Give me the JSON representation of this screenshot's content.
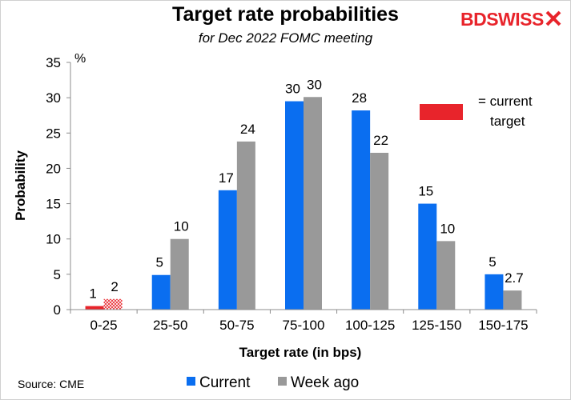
{
  "title": "Target rate probabilities",
  "subtitle": "for Dec 2022 FOMC meeting",
  "logo": {
    "text": "BDSWISS",
    "color": "#e8242b"
  },
  "source": "Source: CME",
  "unit_label": "%",
  "annotation": {
    "line1": "= current",
    "line2": "target",
    "color": "#e8242b"
  },
  "colors": {
    "current": "#0a6ef0",
    "week_ago": "#999999",
    "current_target": "#e8242b"
  },
  "chart_data": {
    "type": "bar",
    "title": "Target rate probabilities",
    "subtitle": "for Dec 2022 FOMC meeting",
    "xlabel": "Target rate (in bps)",
    "ylabel": "Probability",
    "ylim": [
      0,
      35
    ],
    "yticks": [
      0,
      5,
      10,
      15,
      20,
      25,
      30,
      35
    ],
    "categories": [
      "0-25",
      "25-50",
      "50-75",
      "75-100",
      "100-125",
      "125-150",
      "150-175"
    ],
    "series": [
      {
        "name": "Current",
        "values": [
          0.5,
          4.9,
          16.9,
          29.5,
          28.2,
          15.0,
          5.0
        ],
        "labels": [
          "1",
          "5",
          "17",
          "30",
          "28",
          "15",
          "5"
        ]
      },
      {
        "name": "Week ago",
        "values": [
          1.5,
          10.0,
          23.8,
          30.1,
          22.2,
          9.7,
          2.7
        ],
        "labels": [
          "2",
          "10",
          "24",
          "30",
          "22",
          "10",
          "2.7"
        ]
      }
    ],
    "current_target_category": "0-25",
    "legend_position": "bottom",
    "grid": false
  }
}
